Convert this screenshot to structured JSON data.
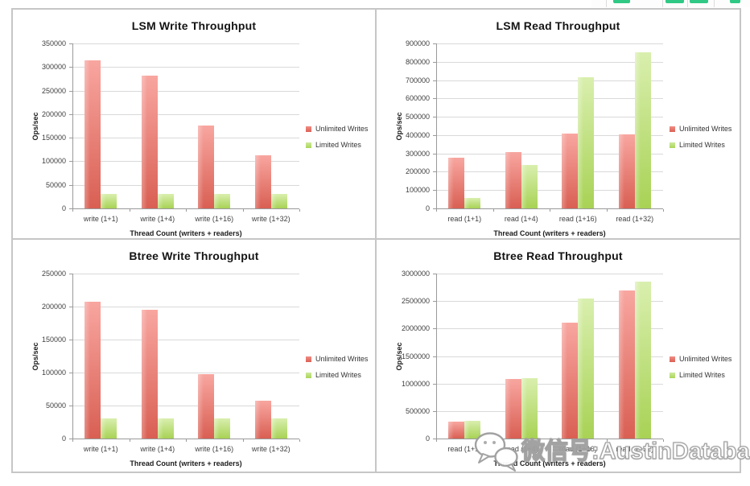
{
  "colors": {
    "unlimited_writes": "#e0685c",
    "limited_writes": "#b2d966",
    "red_gradient_top": "#f8a6a0",
    "red_gradient_bottom": "#d95f53",
    "green_gradient_top": "#d9efae",
    "green_gradient_bottom": "#a8d255",
    "gridline": "#d9d9d9",
    "axis": "#9a9a9a",
    "frame_border": "#c6c6c6",
    "toolbar_icon_green": "#2fc985"
  },
  "watermark": {
    "icon": "wechat-chat-bubbles-icon",
    "text": "微信号:AustinDatabases"
  },
  "chart_data": [
    {
      "type": "bar",
      "title": "LSM Write Throughput",
      "xlabel": "Thread Count (writers + readers)",
      "ylabel": "Ops/sec",
      "categories": [
        "write (1+1)",
        "write (1+4)",
        "write (1+16)",
        "write (1+32)"
      ],
      "series": [
        {
          "name": "Unlimited Writes",
          "color": "#e0685c",
          "values": [
            315000,
            282000,
            176000,
            112000
          ]
        },
        {
          "name": "Limited Writes",
          "color": "#b2d966",
          "values": [
            30000,
            30000,
            30000,
            30000
          ]
        }
      ],
      "ylim": [
        0,
        350000
      ],
      "ystep": 50000,
      "yticks": [
        "0",
        "50000",
        "100000",
        "150000",
        "200000",
        "250000",
        "300000",
        "350000"
      ],
      "grid": true,
      "legend_position": "right"
    },
    {
      "type": "bar",
      "title": "LSM Read Throughput",
      "xlabel": "Thread Count (writers + readers)",
      "ylabel": "Ops/sec",
      "categories": [
        "read (1+1)",
        "read (1+4)",
        "read (1+16)",
        "read (1+32)"
      ],
      "series": [
        {
          "name": "Unlimited Writes",
          "color": "#e0685c",
          "values": [
            278000,
            307000,
            407000,
            402000
          ]
        },
        {
          "name": "Limited Writes",
          "color": "#b2d966",
          "values": [
            58000,
            236000,
            716000,
            852000
          ]
        }
      ],
      "ylim": [
        0,
        900000
      ],
      "ystep": 100000,
      "yticks": [
        "0",
        "100000",
        "200000",
        "300000",
        "400000",
        "500000",
        "600000",
        "700000",
        "800000",
        "900000"
      ],
      "grid": true,
      "legend_position": "right"
    },
    {
      "type": "bar",
      "title": "Btree Write Throughput",
      "xlabel": "Thread Count (writers + readers)",
      "ylabel": "Ops/sec",
      "categories": [
        "write (1+1)",
        "write (1+4)",
        "write (1+16)",
        "write (1+32)"
      ],
      "series": [
        {
          "name": "Unlimited Writes",
          "color": "#e0685c",
          "values": [
            207000,
            195000,
            97000,
            57000
          ]
        },
        {
          "name": "Limited Writes",
          "color": "#b2d966",
          "values": [
            30000,
            30000,
            30000,
            30000
          ]
        }
      ],
      "ylim": [
        0,
        250000
      ],
      "ystep": 50000,
      "yticks": [
        "0",
        "50000",
        "100000",
        "150000",
        "200000",
        "250000"
      ],
      "grid": true,
      "legend_position": "right"
    },
    {
      "type": "bar",
      "title": "Btree Read Throughput",
      "xlabel": "Thread Count (writers + readers)",
      "ylabel": "Ops/sec",
      "categories": [
        "read (1+1)",
        "read (1+4)",
        "read (1+16)",
        "read (1+32)"
      ],
      "series": [
        {
          "name": "Unlimited Writes",
          "color": "#e0685c",
          "values": [
            310000,
            1085000,
            2110000,
            2690000
          ]
        },
        {
          "name": "Limited Writes",
          "color": "#b2d966",
          "values": [
            320000,
            1100000,
            2550000,
            2860000
          ]
        }
      ],
      "ylim": [
        0,
        3000000
      ],
      "ystep": 500000,
      "yticks": [
        "0",
        "500000",
        "1000000",
        "1500000",
        "2000000",
        "2500000",
        "3000000"
      ],
      "grid": true,
      "legend_position": "right"
    }
  ]
}
